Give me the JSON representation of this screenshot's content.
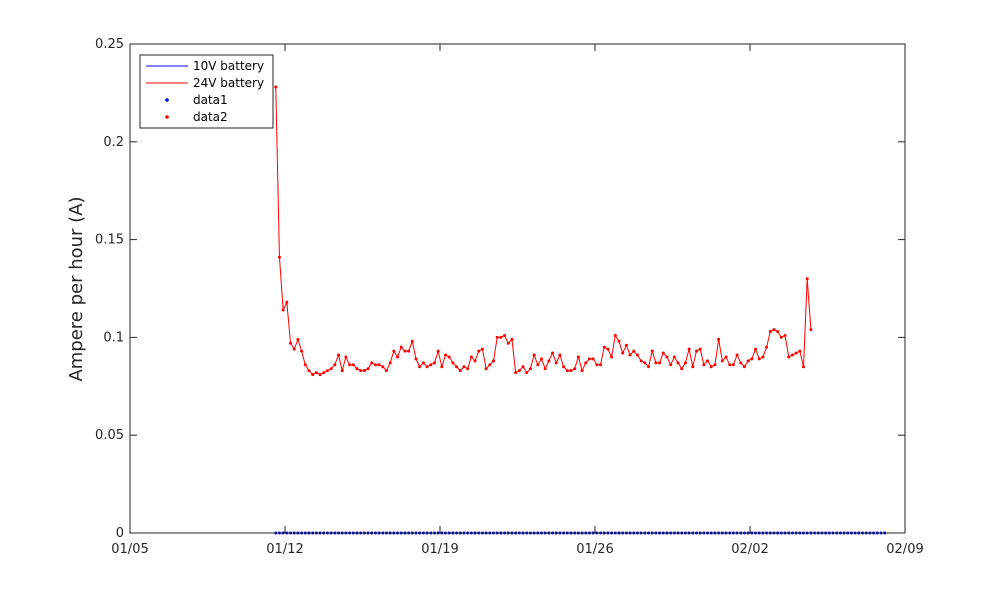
{
  "chart_data": {
    "type": "line",
    "title": "",
    "xlabel": "",
    "ylabel": "Ampere per hour (A)",
    "x_start": "2021-01-05",
    "x_end": "2021-02-09",
    "xlim": [
      "2021-01-05",
      "2021-02-09"
    ],
    "ylim": [
      0,
      0.25
    ],
    "x_ticks": [
      "2021-01-05",
      "2021-01-12",
      "2021-01-19",
      "2021-01-26",
      "2021-02-02",
      "2021-02-09"
    ],
    "x_tick_labels": [
      "01/05",
      "01/12",
      "01/19",
      "01/26",
      "02/02",
      "02/09"
    ],
    "y_ticks": [
      0,
      0.05,
      0.1,
      0.15,
      0.2,
      0.25
    ],
    "y_tick_labels": [
      "0",
      "0.05",
      "0.1",
      "0.15",
      "0.2",
      "0.25"
    ],
    "grid": false,
    "legend_position": "top-left",
    "legend": [
      "10V battery",
      "24V battery",
      "data1",
      "data2"
    ],
    "series": [
      {
        "name": "10V battery",
        "style": "line",
        "color": "#0000ff",
        "x_range": [
          "2021-01-11 14:00",
          "2021-02-08 02:00"
        ],
        "sample_interval_hours": 4,
        "values": [
          0
        ]
      },
      {
        "name": "24V battery",
        "style": "line",
        "color": "#ff0000",
        "x_range": [
          "2021-01-11 14:00",
          "2021-02-08 02:00"
        ],
        "sample_interval_hours": 4,
        "values": [
          0.228,
          0.141,
          0.114,
          0.118,
          0.097,
          0.094,
          0.099,
          0.093,
          0.086,
          0.083,
          0.081,
          0.082,
          0.081,
          0.082,
          0.083,
          0.084,
          0.086,
          0.091,
          0.083,
          0.09,
          0.086,
          0.086,
          0.084,
          0.083,
          0.083,
          0.084,
          0.087,
          0.086,
          0.086,
          0.085,
          0.083,
          0.087,
          0.093,
          0.09,
          0.095,
          0.093,
          0.093,
          0.098,
          0.089,
          0.085,
          0.087,
          0.085,
          0.086,
          0.087,
          0.093,
          0.085,
          0.091,
          0.09,
          0.087,
          0.085,
          0.083,
          0.085,
          0.084,
          0.09,
          0.088,
          0.093,
          0.094,
          0.084,
          0.086,
          0.088,
          0.1,
          0.1,
          0.101,
          0.097,
          0.099,
          0.082,
          0.083,
          0.085,
          0.082,
          0.084,
          0.091,
          0.086,
          0.089,
          0.084,
          0.088,
          0.092,
          0.087,
          0.091,
          0.085,
          0.083,
          0.083,
          0.084,
          0.09,
          0.083,
          0.087,
          0.089,
          0.089,
          0.086,
          0.086,
          0.095,
          0.094,
          0.09,
          0.101,
          0.098,
          0.092,
          0.096,
          0.091,
          0.093,
          0.091,
          0.088,
          0.087,
          0.085,
          0.093,
          0.087,
          0.087,
          0.092,
          0.09,
          0.086,
          0.09,
          0.087,
          0.084,
          0.087,
          0.094,
          0.085,
          0.093,
          0.094,
          0.086,
          0.088,
          0.085,
          0.086,
          0.099,
          0.088,
          0.09,
          0.086,
          0.086,
          0.091,
          0.087,
          0.085,
          0.088,
          0.089,
          0.094,
          0.089,
          0.09,
          0.095,
          0.103,
          0.104,
          0.103,
          0.1,
          0.101,
          0.09,
          0.091,
          0.092,
          0.093,
          0.085,
          0.13,
          0.104
        ]
      },
      {
        "name": "data1",
        "style": "markers",
        "color": "#0000ff"
      },
      {
        "name": "data2",
        "style": "markers",
        "color": "#ff0000"
      }
    ]
  }
}
